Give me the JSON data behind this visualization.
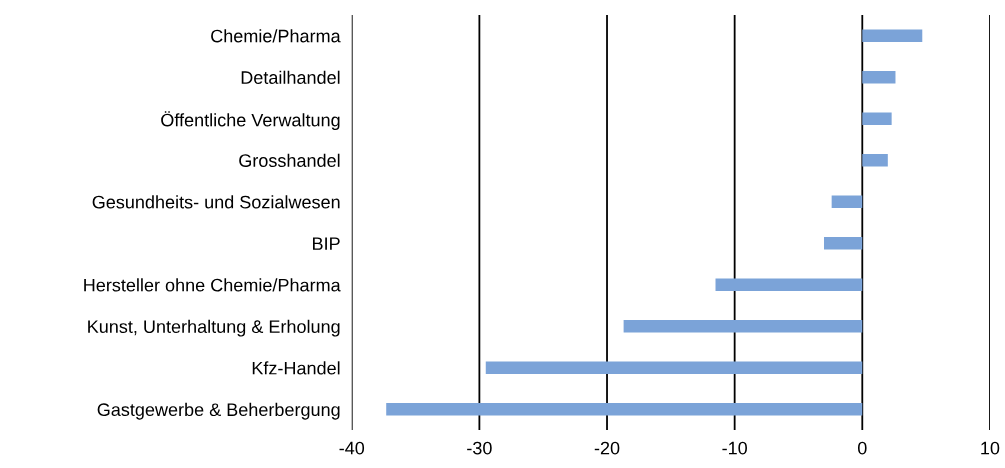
{
  "chart_data": {
    "type": "bar",
    "orientation": "horizontal",
    "categories": [
      "Chemie/Pharma",
      "Detailhandel",
      "Öffentliche Verwaltung",
      "Grosshandel",
      "Gesundheits- und Sozialwesen",
      "BIP",
      "Hersteller ohne Chemie/Pharma",
      "Kunst, Unterhaltung & Erholung",
      "Kfz-Handel",
      "Gastgewerbe & Beherbergung"
    ],
    "values": [
      4.7,
      2.6,
      2.3,
      2.0,
      -2.4,
      -3.0,
      -11.5,
      -18.7,
      -29.5,
      -37.3
    ],
    "color": "#7ba3d8",
    "xlim": [
      -40,
      10
    ],
    "xticks": [
      -40,
      -30,
      -20,
      -10,
      0,
      10
    ],
    "grid": "x"
  }
}
